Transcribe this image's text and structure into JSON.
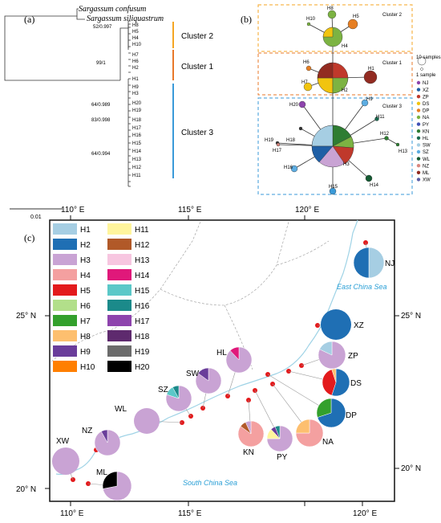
{
  "panels": {
    "a": {
      "label": "(a)",
      "species": [
        "Sargassum confusum",
        "Sargassum siliquastrum"
      ],
      "haplotypes_order": [
        "H8",
        "H5",
        "H4",
        "H10",
        "H7",
        "H6",
        "H2",
        "H1",
        "H9",
        "H3",
        "H20",
        "H19",
        "H18",
        "H17",
        "H16",
        "H15",
        "H14",
        "H13",
        "H12",
        "H11"
      ],
      "support": [
        "52/0.997",
        "99/1",
        "64/0.989",
        "83/0.998",
        "64/0.994"
      ],
      "clusters": [
        "Cluster 2",
        "Cluster 1",
        "Cluster 3"
      ],
      "cluster_colors": [
        "#f5a623",
        "#e8782a",
        "#3a9ad9"
      ],
      "scale_label": "0.01"
    },
    "b": {
      "label": "(b)",
      "clusters": [
        "Cluster 2",
        "Cluster 1",
        "Cluster 3"
      ],
      "size_legend": [
        "10 samples",
        "1 sample"
      ],
      "populations": [
        "NJ",
        "XZ",
        "ZP",
        "DS",
        "DP",
        "NA",
        "PY",
        "KN",
        "HL",
        "SW",
        "SZ",
        "WL",
        "NZ",
        "ML",
        "XW"
      ],
      "population_colors": [
        "#8e44ad",
        "#1f5fa5",
        "#c0392b",
        "#f1c40f",
        "#e67e22",
        "#7cb342",
        "#3f51b5",
        "#2e7d32",
        "#1a6b4f",
        "#a6cee3",
        "#5dade2",
        "#145a32",
        "#d98880",
        "#922b21",
        "#5b5ea6"
      ],
      "node_labels": [
        "H8",
        "H10",
        "H5",
        "H4",
        "H6",
        "H1",
        "H7",
        "H2",
        "H20",
        "H9",
        "H19",
        "H18",
        "H17",
        "H11",
        "H12",
        "H13",
        "H16",
        "H3",
        "H14",
        "H15"
      ]
    },
    "c": {
      "label": "(c)",
      "haplotype_legend": [
        {
          "name": "H1",
          "color": "#a6cee3"
        },
        {
          "name": "H2",
          "color": "#1f6fb4"
        },
        {
          "name": "H3",
          "color": "#c9a3d4"
        },
        {
          "name": "H4",
          "color": "#f4a0a0"
        },
        {
          "name": "H5",
          "color": "#e31a1c"
        },
        {
          "name": "H6",
          "color": "#b2df8a"
        },
        {
          "name": "H7",
          "color": "#33a02c"
        },
        {
          "name": "H8",
          "color": "#fdbf6f"
        },
        {
          "name": "H9",
          "color": "#6a3d9a"
        },
        {
          "name": "H10",
          "color": "#ff7f00"
        },
        {
          "name": "H11",
          "color": "#fff59d"
        },
        {
          "name": "H12",
          "color": "#b15928"
        },
        {
          "name": "H13",
          "color": "#f7c6e0"
        },
        {
          "name": "H14",
          "color": "#e0187a"
        },
        {
          "name": "H15",
          "color": "#5bc8c8"
        },
        {
          "name": "H16",
          "color": "#1b8a8a"
        },
        {
          "name": "H17",
          "color": "#8e44ad"
        },
        {
          "name": "H18",
          "color": "#5e2a6e"
        },
        {
          "name": "H19",
          "color": "#6b6b6b"
        },
        {
          "name": "H20",
          "color": "#000000"
        }
      ],
      "sites": [
        "NJ",
        "XZ",
        "ZP",
        "DS",
        "DP",
        "NA",
        "PY",
        "KN",
        "HL",
        "SW",
        "SZ",
        "WL",
        "NZ",
        "XW",
        "ML"
      ],
      "sea_labels": [
        "East China Sea",
        "South China Sea"
      ],
      "top_ticks": [
        "110° E",
        "115° E",
        "120° E"
      ],
      "bottom_ticks": [
        "110° E",
        "115° E",
        "120° E"
      ],
      "left_ticks": [
        "25° N",
        "20° N"
      ],
      "right_ticks": [
        "25° N",
        "20° N"
      ]
    }
  }
}
